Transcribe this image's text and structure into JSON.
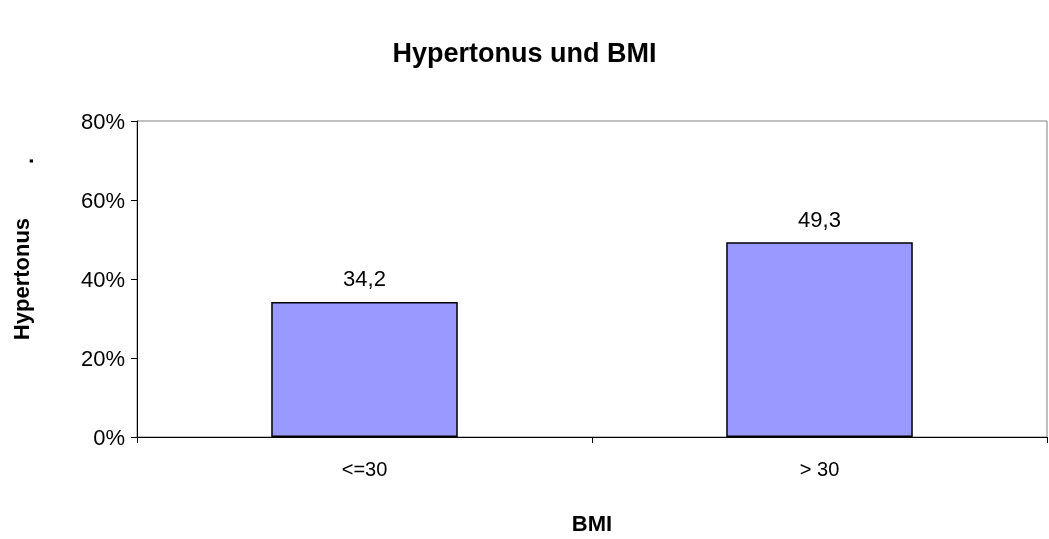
{
  "chart_data": {
    "type": "bar",
    "title": "Hypertonus und BMI",
    "xlabel": "BMI",
    "ylabel": "Hypertonus",
    "annotations": [
      "."
    ],
    "categories": [
      "<=30",
      "> 30"
    ],
    "values": [
      34.2,
      49.3
    ],
    "value_labels": [
      "34,2",
      "49,3"
    ],
    "color": "#9999ff",
    "ylim": [
      0,
      80
    ],
    "yticks": [
      {
        "value": 0,
        "label": "0%"
      },
      {
        "value": 20,
        "label": "20%"
      },
      {
        "value": 40,
        "label": "40%"
      },
      {
        "value": 60,
        "label": "60%"
      },
      {
        "value": 80,
        "label": "80%"
      }
    ],
    "grid": false
  }
}
